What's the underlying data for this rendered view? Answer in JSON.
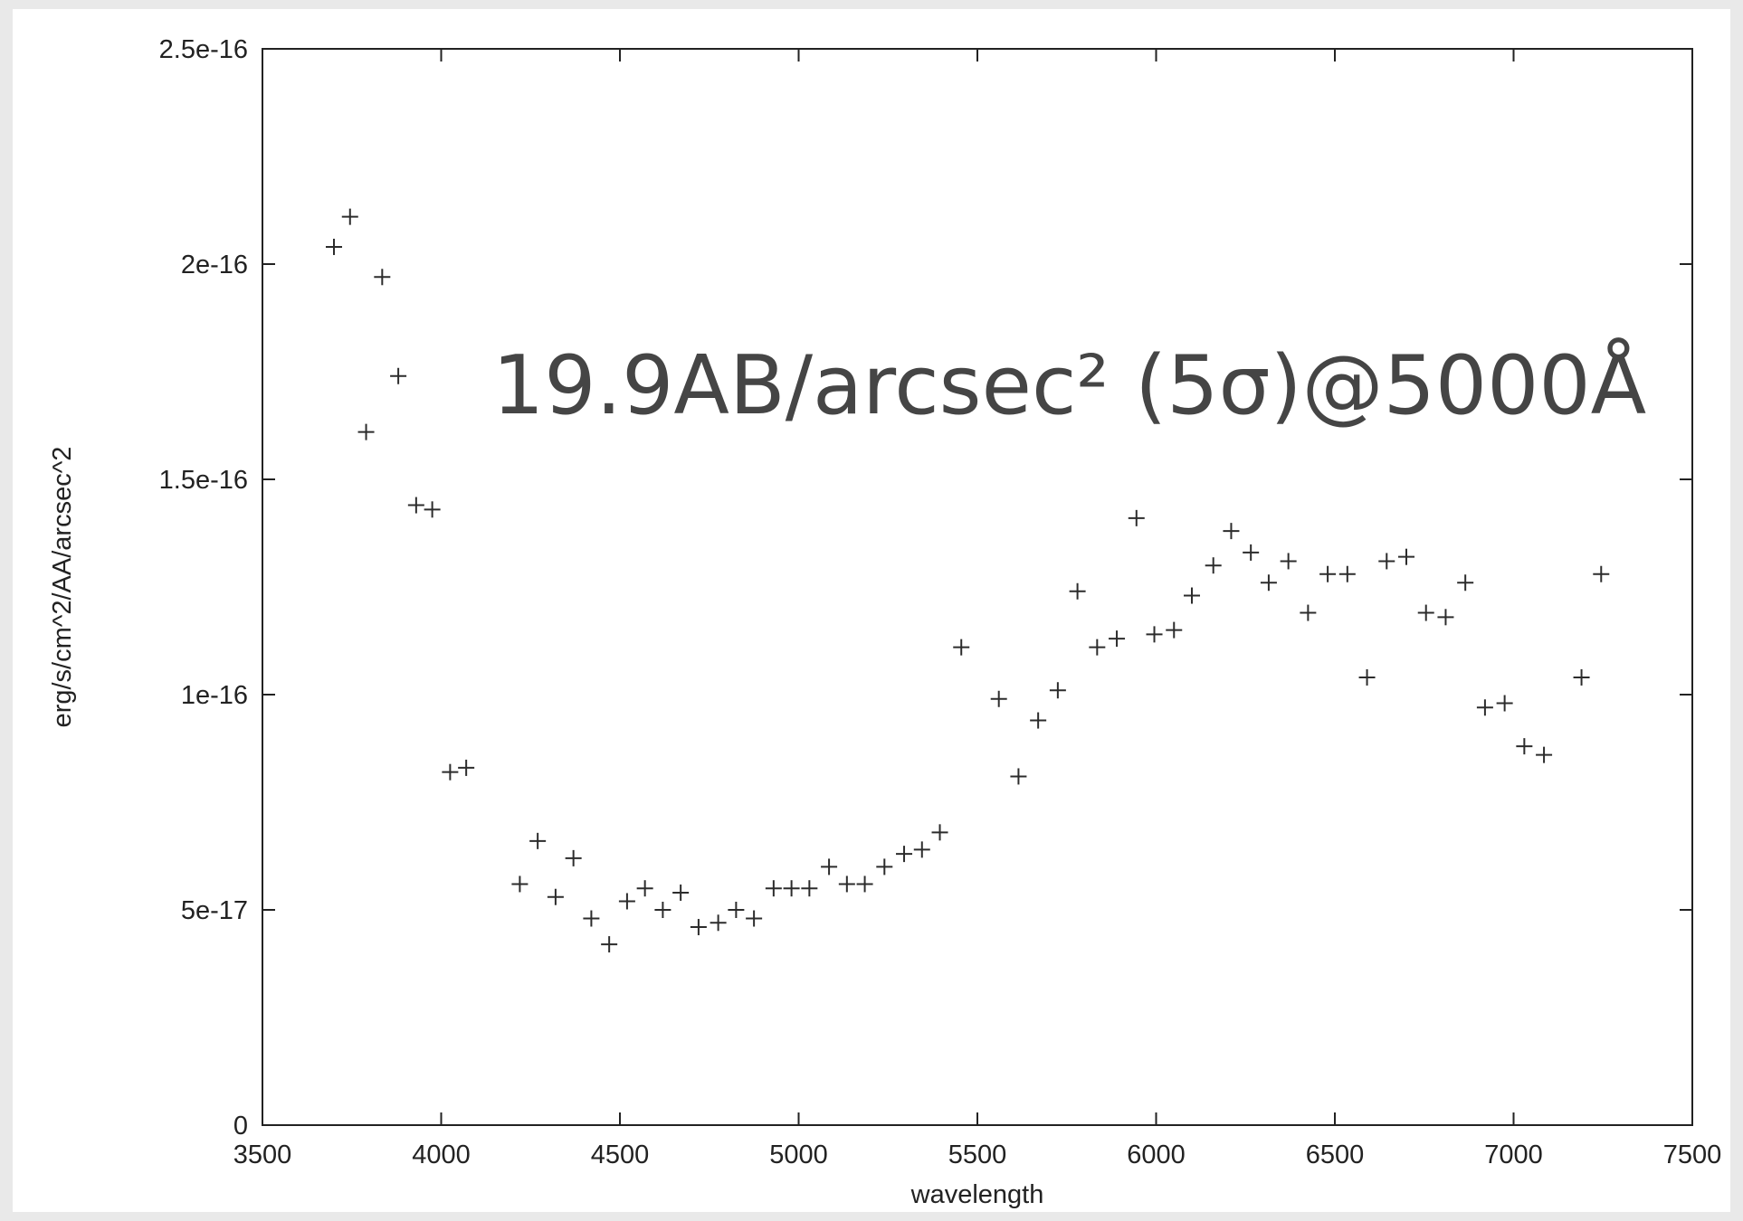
{
  "chart_data": {
    "type": "scatter",
    "title": "",
    "xlabel": "wavelength",
    "ylabel": "erg/s/cm^2/AA/arcsec^2",
    "xlim": [
      3500,
      7500
    ],
    "ylim": [
      0,
      2.5e-16
    ],
    "x_ticks": [
      3500,
      4000,
      4500,
      5000,
      5500,
      6000,
      6500,
      7000,
      7500
    ],
    "x_tick_labels": [
      "3500",
      "4000",
      "4500",
      "5000",
      "5500",
      "6000",
      "6500",
      "7000",
      "7500"
    ],
    "y_ticks": [
      0,
      5e-17,
      1e-16,
      1.5e-16,
      2e-16,
      2.5e-16
    ],
    "y_tick_labels": [
      "0",
      "5e-17",
      "1e-16",
      "1.5e-16",
      "2e-16",
      "2.5e-16"
    ],
    "grid": false,
    "marker": "+",
    "marker_color": "#2c2c2c",
    "annotation": {
      "text": "19.9AB/arcsec² (5σ)@5000Å"
    },
    "x": [
      3700,
      3745,
      3835,
      3880,
      3790,
      3930,
      3975,
      4025,
      4070,
      4220,
      4270,
      4320,
      4370,
      4420,
      4470,
      4520,
      4570,
      4620,
      4670,
      4720,
      4775,
      4825,
      4875,
      4930,
      4980,
      5030,
      5085,
      5135,
      5185,
      5240,
      5295,
      5345,
      5395,
      5455,
      5560,
      5615,
      5670,
      5725,
      5780,
      5835,
      5890,
      5945,
      5995,
      6050,
      6100,
      6160,
      6210,
      6265,
      6315,
      6370,
      6425,
      6480,
      6535,
      6590,
      6645,
      6700,
      6755,
      6810,
      6865,
      6920,
      6975,
      7030,
      7085,
      7190,
      7245
    ],
    "y": [
      2.04e-16,
      2.11e-16,
      1.97e-16,
      1.74e-16,
      1.61e-16,
      1.44e-16,
      1.43e-16,
      8.2e-17,
      8.3e-17,
      5.6e-17,
      6.6e-17,
      5.3e-17,
      6.2e-17,
      4.8e-17,
      4.2e-17,
      5.2e-17,
      5.5e-17,
      5e-17,
      5.4e-17,
      4.6e-17,
      4.7e-17,
      5e-17,
      4.8e-17,
      5.5e-17,
      5.5e-17,
      5.5e-17,
      6e-17,
      5.6e-17,
      5.6e-17,
      6e-17,
      6.3e-17,
      6.4e-17,
      6.8e-17,
      1.11e-16,
      9.9e-17,
      8.1e-17,
      9.4e-17,
      1.01e-16,
      1.24e-16,
      1.11e-16,
      1.13e-16,
      1.41e-16,
      1.14e-16,
      1.15e-16,
      1.23e-16,
      1.3e-16,
      1.38e-16,
      1.33e-16,
      1.26e-16,
      1.31e-16,
      1.19e-16,
      1.28e-16,
      1.28e-16,
      1.04e-16,
      1.31e-16,
      1.32e-16,
      1.19e-16,
      1.18e-16,
      1.26e-16,
      9.7e-17,
      9.8e-17,
      8.8e-17,
      8.6e-17,
      1.04e-16,
      1.28e-16
    ]
  }
}
